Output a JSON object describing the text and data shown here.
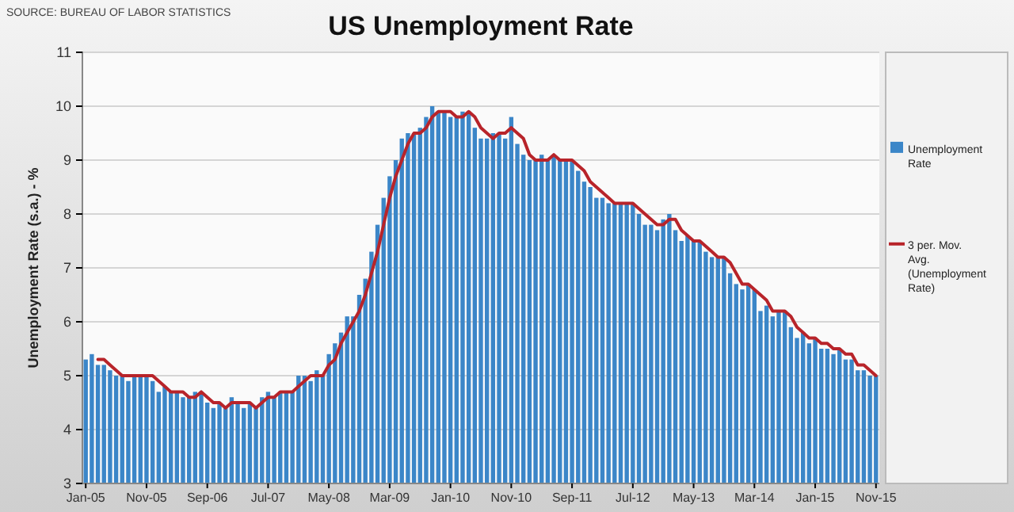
{
  "chart_data": {
    "type": "bar",
    "title": "US Unemployment Rate",
    "ylabel": "Unemployment Rate (s.a.) - %",
    "annotations": [
      "SOURCE: BUREAU OF LABOR STATISTICS"
    ],
    "categories": [
      "Jan-05",
      null,
      null,
      null,
      null,
      null,
      null,
      null,
      null,
      null,
      "Nov-05",
      null,
      null,
      null,
      null,
      null,
      null,
      null,
      null,
      null,
      "Sep-06",
      null,
      null,
      null,
      null,
      null,
      null,
      null,
      null,
      null,
      "Jul-07",
      null,
      null,
      null,
      null,
      null,
      null,
      null,
      null,
      null,
      "May-08",
      null,
      null,
      null,
      null,
      null,
      null,
      null,
      null,
      null,
      "Mar-09",
      null,
      null,
      null,
      null,
      null,
      null,
      null,
      null,
      null,
      "Jan-10",
      null,
      null,
      null,
      null,
      null,
      null,
      null,
      null,
      null,
      "Nov-10",
      null,
      null,
      null,
      null,
      null,
      null,
      null,
      null,
      null,
      "Sep-11",
      null,
      null,
      null,
      null,
      null,
      null,
      null,
      null,
      null,
      "Jul-12",
      null,
      null,
      null,
      null,
      null,
      null,
      null,
      null,
      null,
      "May-13",
      null,
      null,
      null,
      null,
      null,
      null,
      null,
      null,
      null,
      "Mar-14",
      null,
      null,
      null,
      null,
      null,
      null,
      null,
      null,
      null,
      "Jan-15",
      null,
      null,
      null,
      null,
      null,
      null,
      null,
      null,
      null,
      "Nov-15"
    ],
    "series": [
      {
        "name": "Unemployment Rate",
        "color": "#3b86c8",
        "values": [
          5.3,
          5.4,
          5.2,
          5.2,
          5.1,
          5.0,
          5.0,
          4.9,
          5.0,
          5.0,
          5.0,
          4.9,
          4.7,
          4.8,
          4.7,
          4.7,
          4.6,
          4.6,
          4.7,
          4.7,
          4.5,
          4.4,
          4.5,
          4.4,
          4.6,
          4.5,
          4.4,
          4.5,
          4.4,
          4.6,
          4.7,
          4.6,
          4.7,
          4.7,
          4.7,
          5.0,
          5.0,
          4.9,
          5.1,
          5.0,
          5.4,
          5.6,
          5.8,
          6.1,
          6.1,
          6.5,
          6.8,
          7.3,
          7.8,
          8.3,
          8.7,
          9.0,
          9.4,
          9.5,
          9.5,
          9.6,
          9.8,
          10.0,
          9.9,
          9.9,
          9.8,
          9.8,
          9.9,
          9.9,
          9.6,
          9.4,
          9.4,
          9.5,
          9.5,
          9.4,
          9.8,
          9.3,
          9.1,
          9.0,
          9.0,
          9.1,
          9.0,
          9.1,
          9.0,
          9.0,
          9.0,
          8.8,
          8.6,
          8.5,
          8.3,
          8.3,
          8.2,
          8.2,
          8.2,
          8.2,
          8.2,
          8.0,
          7.8,
          7.8,
          7.7,
          7.9,
          8.0,
          7.7,
          7.5,
          7.6,
          7.5,
          7.5,
          7.3,
          7.2,
          7.2,
          7.2,
          6.9,
          6.7,
          6.6,
          6.7,
          6.6,
          6.2,
          6.3,
          6.1,
          6.2,
          6.2,
          5.9,
          5.7,
          5.8,
          5.6,
          5.7,
          5.5,
          5.5,
          5.4,
          5.5,
          5.3,
          5.3,
          5.1,
          5.1,
          5.0,
          5.0
        ]
      },
      {
        "name": "3 per. Mov. Avg. (Unemployment Rate)",
        "type": "line",
        "color": "#b8242a",
        "values": [
          null,
          null,
          5.3,
          5.3,
          5.2,
          5.1,
          5.0,
          5.0,
          5.0,
          5.0,
          5.0,
          5.0,
          4.9,
          4.8,
          4.7,
          4.7,
          4.7,
          4.6,
          4.6,
          4.7,
          4.6,
          4.5,
          4.5,
          4.4,
          4.5,
          4.5,
          4.5,
          4.5,
          4.4,
          4.5,
          4.6,
          4.6,
          4.7,
          4.7,
          4.7,
          4.8,
          4.9,
          5.0,
          5.0,
          5.0,
          5.2,
          5.3,
          5.6,
          5.8,
          6.0,
          6.2,
          6.5,
          6.9,
          7.3,
          7.8,
          8.3,
          8.7,
          9.0,
          9.3,
          9.5,
          9.5,
          9.6,
          9.8,
          9.9,
          9.9,
          9.9,
          9.8,
          9.8,
          9.9,
          9.8,
          9.6,
          9.5,
          9.4,
          9.5,
          9.5,
          9.6,
          9.5,
          9.4,
          9.1,
          9.0,
          9.0,
          9.0,
          9.1,
          9.0,
          9.0,
          9.0,
          8.9,
          8.8,
          8.6,
          8.5,
          8.4,
          8.3,
          8.2,
          8.2,
          8.2,
          8.2,
          8.1,
          8.0,
          7.9,
          7.8,
          7.8,
          7.9,
          7.9,
          7.7,
          7.6,
          7.5,
          7.5,
          7.4,
          7.3,
          7.2,
          7.2,
          7.1,
          6.9,
          6.7,
          6.7,
          6.6,
          6.5,
          6.4,
          6.2,
          6.2,
          6.2,
          6.1,
          5.9,
          5.8,
          5.7,
          5.7,
          5.6,
          5.6,
          5.5,
          5.5,
          5.4,
          5.4,
          5.2,
          5.2,
          5.1,
          5.0
        ]
      }
    ],
    "ylim": [
      3,
      11
    ],
    "yticks": [
      3,
      4,
      5,
      6,
      7,
      8,
      9,
      10,
      11
    ],
    "grid": "y",
    "legend": "right",
    "marker": "none",
    "line_style": "solid"
  }
}
